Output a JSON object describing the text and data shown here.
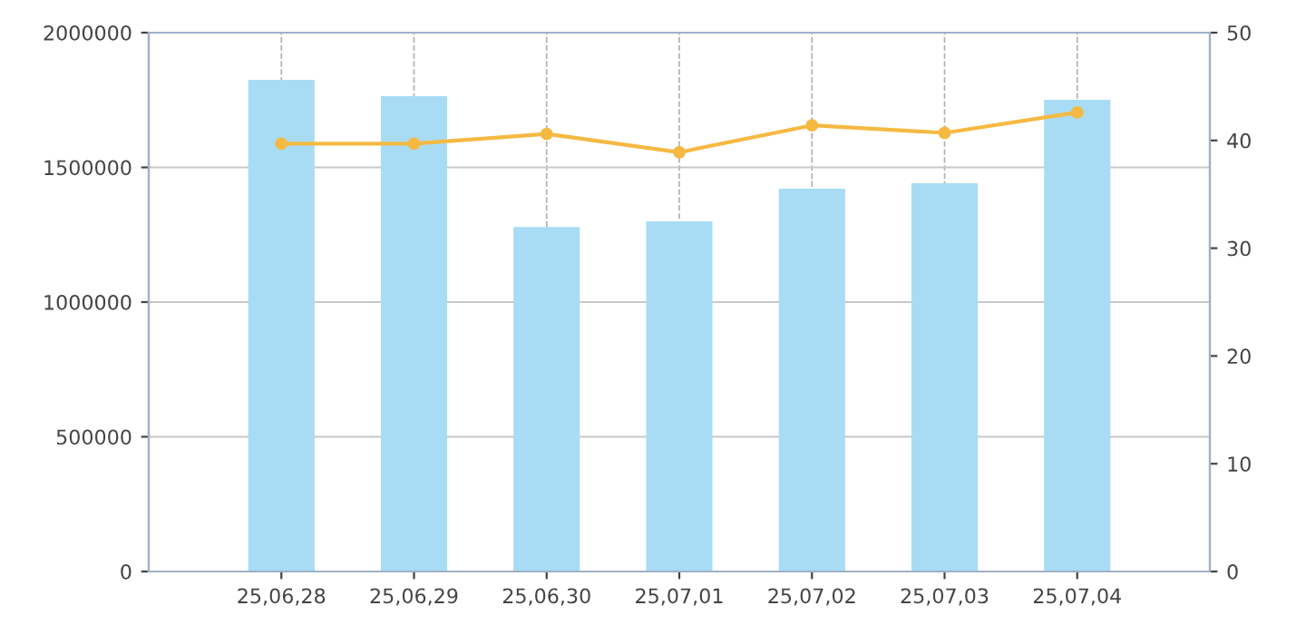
{
  "chart_data": {
    "type": "bar",
    "categories": [
      "25,06,28",
      "25,06,29",
      "25,06,30",
      "25,07,01",
      "25,07,02",
      "25,07,03",
      "25,07,04"
    ],
    "series": [
      {
        "color": "#a8dcf5",
        "values": [
          1825000,
          1764000,
          1279000,
          1300000,
          1421000,
          1441000,
          1751000
        ]
      },
      {
        "type": "line",
        "axis": "y2",
        "color": "#f5b942",
        "marker": "circle",
        "line_style": "solid",
        "values": [
          39.7,
          39.7,
          40.6,
          38.9,
          41.4,
          40.7,
          42.6
        ]
      }
    ],
    "ylim": [
      0,
      2000000
    ],
    "yticks": [
      0,
      500000,
      1000000,
      1500000,
      2000000
    ],
    "y2lim": [
      0,
      50
    ],
    "y2ticks": [
      0,
      10,
      20,
      30,
      40,
      50
    ],
    "grid": true
  }
}
